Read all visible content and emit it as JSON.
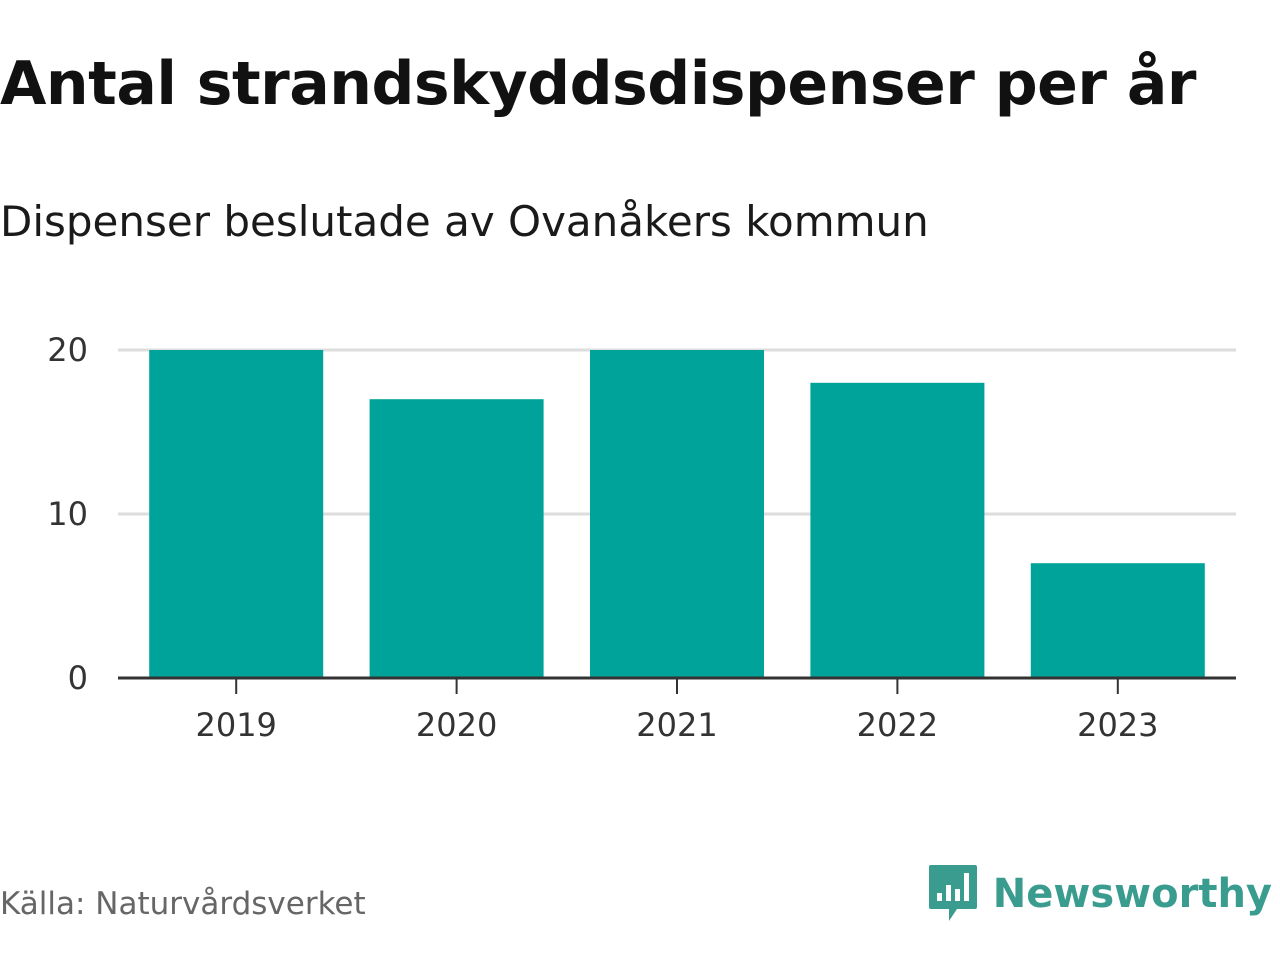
{
  "header": {
    "title": "Antal strandskyddsdispenser per år",
    "subtitle": "Dispenser beslutade av Ovanåkers kommun"
  },
  "footer": {
    "source": "Källa: Naturvårdsverket",
    "brand": "Newsworthy"
  },
  "colors": {
    "bar": "#00a39a",
    "grid": "#dddddd",
    "axis": "#333333",
    "brand": "#3a9c8f"
  },
  "chart_data": {
    "type": "bar",
    "title": "Antal strandskyddsdispenser per år",
    "subtitle": "Dispenser beslutade av Ovanåkers kommun",
    "xlabel": "",
    "ylabel": "",
    "categories": [
      "2019",
      "2020",
      "2021",
      "2022",
      "2023"
    ],
    "values": [
      20,
      17,
      20,
      18,
      7
    ],
    "ylim": [
      0,
      20
    ],
    "yticks": [
      0,
      10,
      20
    ],
    "grid": true
  }
}
